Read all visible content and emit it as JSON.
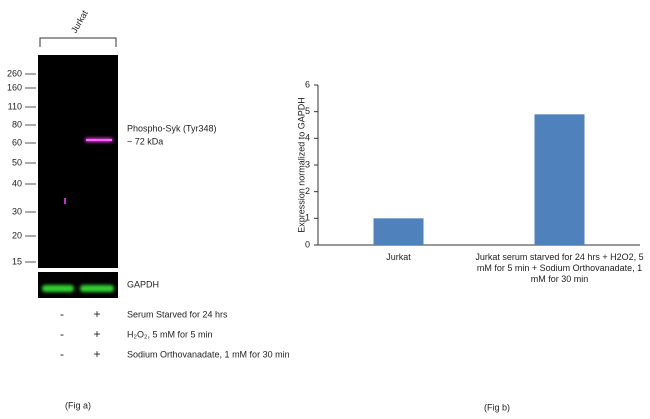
{
  "chart_data": {
    "type": "bar",
    "y_label": "Expression  normalized to GAPDH",
    "categories": [
      "Jurkat",
      "Jurkat serum starved for 24 hrs + H2O2,  5 mM for 5 min + Sodium Orthovanadate, 1 mM for 30 min"
    ],
    "values": [
      1,
      4.9
    ],
    "color": "#4f81bd",
    "ylim": [
      0,
      6
    ],
    "yticks": [
      0,
      1,
      2,
      3,
      4,
      5,
      6
    ],
    "caption": "(Fig b)"
  },
  "blot": {
    "lane_label": "Jurkat",
    "markers": [
      "260",
      "160",
      "110",
      "80",
      "60",
      "50",
      "40",
      "30",
      "20",
      "15"
    ],
    "band_label": "Phospho-Syk (Tyr348)",
    "band_size": "~ 72 kDa",
    "loading_control": "GAPDH",
    "treatments": [
      {
        "lane1": "-",
        "lane2": "+",
        "label": "Serum Starved for 24 hrs"
      },
      {
        "lane1": "-",
        "lane2": "+",
        "label": "H₂O₂, 5 mM for 5 min"
      },
      {
        "lane1": "-",
        "lane2": "+",
        "label": "Sodium Orthovanadate, 1 mM for 30 min"
      }
    ],
    "caption": "(Fig a)"
  }
}
